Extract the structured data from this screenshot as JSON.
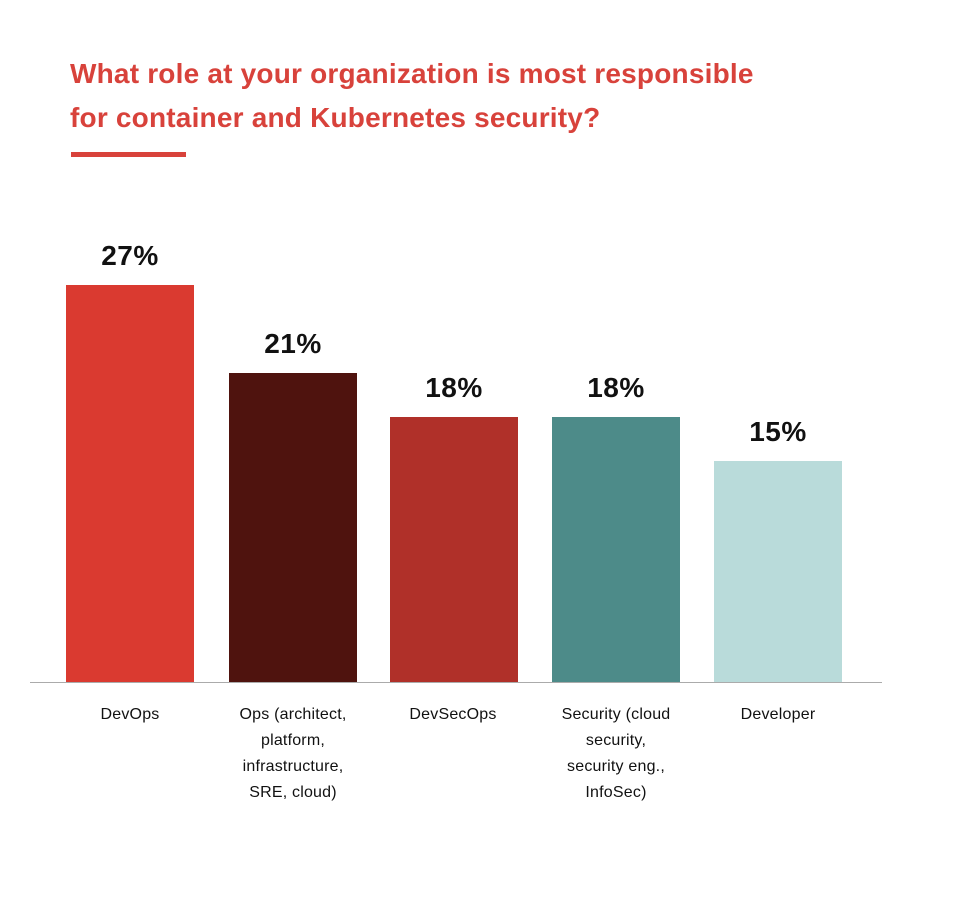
{
  "header": {
    "title_line1": "What role at your organization is most responsible",
    "title_line2": "for container and Kubernetes security?",
    "title_color": "#D8423B",
    "underline_color": "#D8423B"
  },
  "chart_data": {
    "type": "bar",
    "title": "What role at your organization is most responsible for container and Kubernetes security?",
    "unit": "%",
    "categories": [
      "DevOps",
      "Ops (architect, platform, infrastructure, SRE, cloud)",
      "DevSecOps",
      "Security (cloud security, security eng., InfoSec)",
      "Developer"
    ],
    "values": [
      27,
      21,
      18,
      18,
      15
    ],
    "xlabel": "",
    "ylabel": "",
    "y_axis": "hidden",
    "grid": "off",
    "legend": "none",
    "value_label_position": "above-bars",
    "axis_line_color": "#ABABAB",
    "bars": [
      {
        "category": "DevOps",
        "display_label": "DevOps",
        "value": 27,
        "value_label": "27%",
        "color": "#DA3A30"
      },
      {
        "category": "Ops (architect, platform, infrastructure, SRE, cloud)",
        "display_label": "Ops (architect,\nplatform,\ninfrastructure,\nSRE, cloud)",
        "value": 21,
        "value_label": "21%",
        "color": "#4F130E"
      },
      {
        "category": "DevSecOps",
        "display_label": "DevSecOps",
        "value": 18,
        "value_label": "18%",
        "color": "#B03029"
      },
      {
        "category": "Security (cloud security, security eng., InfoSec)",
        "display_label": "Security (cloud\nsecurity,\nsecurity eng.,\nInfoSec)",
        "value": 18,
        "value_label": "18%",
        "color": "#4D8B89"
      },
      {
        "category": "Developer",
        "display_label": "Developer",
        "value": 15,
        "value_label": "15%",
        "color": "#B9DBDA"
      }
    ]
  }
}
